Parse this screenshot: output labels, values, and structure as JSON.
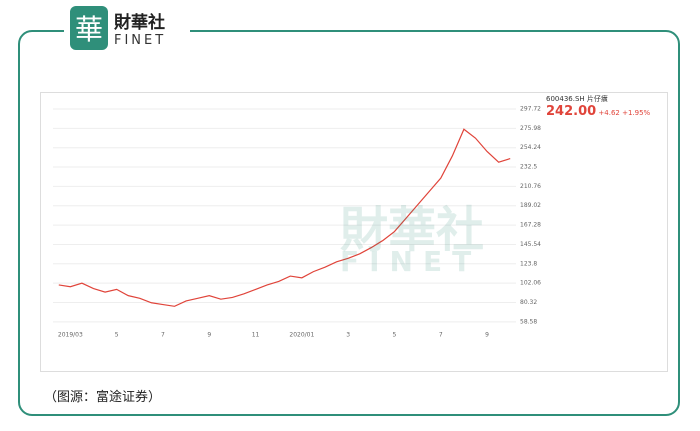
{
  "header": {
    "logo_mark": "華",
    "logo_name": "財華社",
    "logo_en": "FINET"
  },
  "quote": {
    "code": "600436.SH",
    "name": "片仔癀",
    "price": "242.00",
    "change": "+4.62",
    "change_pct": "+1.95%"
  },
  "caption": "（图源：富途证券）",
  "chart_data": {
    "type": "line",
    "categories": [
      null,
      "2019/03",
      null,
      null,
      null,
      "5",
      null,
      null,
      null,
      "7",
      null,
      null,
      null,
      "9",
      null,
      null,
      null,
      "11",
      null,
      null,
      null,
      "2020/01",
      null,
      null,
      null,
      "3",
      null,
      null,
      null,
      "5",
      null,
      null,
      null,
      "7",
      null,
      null,
      null,
      "9",
      null,
      null
    ],
    "values": [
      100,
      98,
      102,
      96,
      92,
      95,
      88,
      85,
      80,
      78,
      76,
      82,
      85,
      88,
      84,
      86,
      90,
      95,
      100,
      104,
      110,
      108,
      115,
      120,
      126,
      130,
      135,
      142,
      150,
      160,
      175,
      190,
      205,
      220,
      245,
      275,
      265,
      250,
      238,
      242
    ],
    "color": "#e0443a",
    "ylim": [
      55,
      300
    ],
    "yticks": [
      297.72,
      275.98,
      254.24,
      232.5,
      210.76,
      189.02,
      167.28,
      145.54,
      123.8,
      102.06,
      80.32,
      58.58
    ]
  }
}
